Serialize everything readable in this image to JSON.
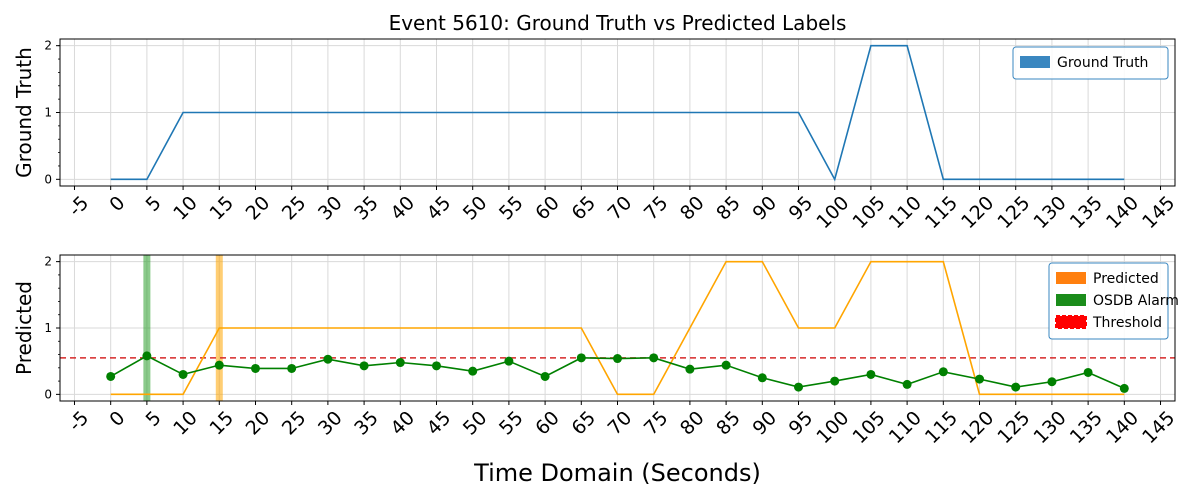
{
  "chart_data": [
    {
      "type": "line",
      "title": "Event 5610: Ground Truth vs Predicted Labels",
      "ylabel": "Ground Truth",
      "xlim": [
        -7,
        147
      ],
      "ylim": [
        -0.1,
        2.1
      ],
      "x_ticks": [
        -5,
        0,
        5,
        10,
        15,
        20,
        25,
        30,
        35,
        40,
        45,
        50,
        55,
        60,
        65,
        70,
        75,
        80,
        85,
        90,
        95,
        100,
        105,
        110,
        115,
        120,
        125,
        130,
        135,
        140,
        145
      ],
      "y_ticks": [
        0,
        1,
        2
      ],
      "grid": true,
      "legend_position": "top-right",
      "legend": [
        {
          "label": "Ground Truth",
          "color": "#3a87c0"
        }
      ],
      "series": [
        {
          "name": "Ground Truth",
          "color": "#1f77b4",
          "x": [
            0,
            5,
            10,
            15,
            20,
            25,
            30,
            35,
            40,
            45,
            50,
            55,
            60,
            65,
            70,
            75,
            80,
            85,
            90,
            95,
            100,
            105,
            110,
            115,
            120,
            125,
            130,
            135,
            140
          ],
          "y": [
            0,
            0,
            1,
            1,
            1,
            1,
            1,
            1,
            1,
            1,
            1,
            1,
            1,
            1,
            1,
            1,
            1,
            1,
            1,
            1,
            0,
            2,
            2,
            0,
            0,
            0,
            0,
            0,
            0
          ]
        }
      ]
    },
    {
      "type": "line",
      "ylabel": "Predicted",
      "xlabel": "Time Domain (Seconds)",
      "xlim": [
        -7,
        147
      ],
      "ylim": [
        -0.1,
        2.1
      ],
      "x_ticks": [
        -5,
        0,
        5,
        10,
        15,
        20,
        25,
        30,
        35,
        40,
        45,
        50,
        55,
        60,
        65,
        70,
        75,
        80,
        85,
        90,
        95,
        100,
        105,
        110,
        115,
        120,
        125,
        130,
        135,
        140,
        145
      ],
      "y_ticks": [
        0,
        1,
        2
      ],
      "grid": true,
      "threshold": 0.55,
      "threshold_color": "#d62728",
      "legend_position": "top-right",
      "legend": [
        {
          "label": "Predicted",
          "color": "#ff7f0e"
        },
        {
          "label": "OSDB Alarm",
          "color": "#1a8c1a"
        },
        {
          "label": "Threshold",
          "color": "#ff0000"
        }
      ],
      "vspans": [
        {
          "x": 5,
          "color": "#2ca02c"
        },
        {
          "x": 15,
          "color": "#ffa500"
        }
      ],
      "series": [
        {
          "name": "Predicted",
          "color": "#ffa500",
          "x": [
            0,
            5,
            10,
            15,
            20,
            25,
            30,
            35,
            40,
            45,
            50,
            55,
            60,
            65,
            70,
            75,
            80,
            85,
            90,
            95,
            100,
            105,
            110,
            115,
            120,
            125,
            130,
            135,
            140
          ],
          "y": [
            0,
            0,
            0,
            1,
            1,
            1,
            1,
            1,
            1,
            1,
            1,
            1,
            1,
            1,
            0,
            0,
            1,
            2,
            2,
            1,
            1,
            2,
            2,
            2,
            0,
            0,
            0,
            0,
            0
          ]
        },
        {
          "name": "OSDB Alarm",
          "color": "#008000",
          "x": [
            0,
            5,
            10,
            15,
            20,
            25,
            30,
            35,
            40,
            45,
            50,
            55,
            60,
            65,
            70,
            75,
            80,
            85,
            90,
            95,
            100,
            105,
            110,
            115,
            120,
            125,
            130,
            135,
            140
          ],
          "y": [
            0.27,
            0.58,
            0.3,
            0.44,
            0.39,
            0.39,
            0.53,
            0.43,
            0.48,
            0.43,
            0.35,
            0.5,
            0.27,
            0.55,
            0.54,
            0.55,
            0.38,
            0.44,
            0.25,
            0.11,
            0.2,
            0.3,
            0.15,
            0.34,
            0.23,
            0.11,
            0.19,
            0.33,
            0.09
          ]
        }
      ]
    }
  ]
}
